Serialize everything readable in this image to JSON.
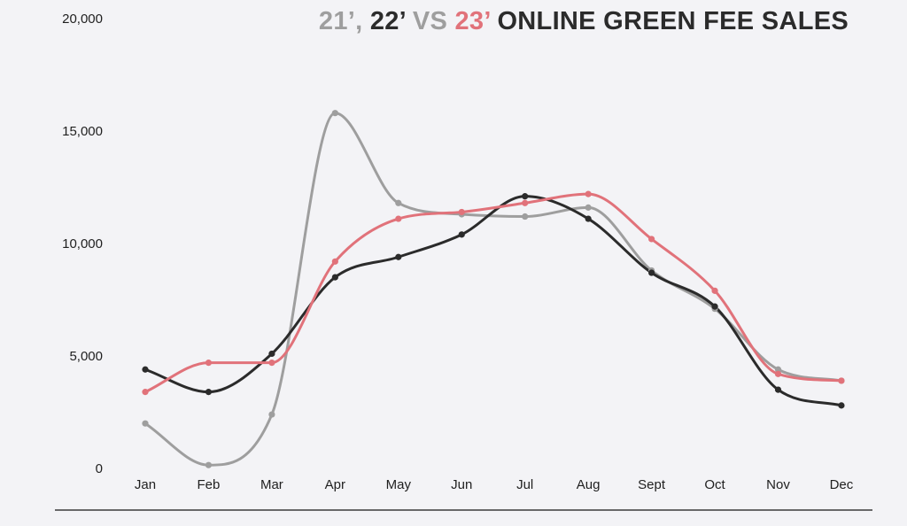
{
  "chart_data": {
    "type": "line",
    "title_parts": [
      {
        "text": "21’, ",
        "color": "#9e9e9e"
      },
      {
        "text": "22’ ",
        "color": "#2b2b2b"
      },
      {
        "text": "VS ",
        "color": "#9e9e9e"
      },
      {
        "text": "23’ ",
        "color": "#e1727a"
      },
      {
        "text": "ONLINE GREEN FEE SALES",
        "color": "#2b2b2b"
      }
    ],
    "categories": [
      "Jan",
      "Feb",
      "Mar",
      "Apr",
      "May",
      "Jun",
      "Jul",
      "Aug",
      "Sept",
      "Oct",
      "Nov",
      "Dec"
    ],
    "yticks": [
      "0",
      "5,000",
      "10,000",
      "15,000",
      "20,000"
    ],
    "ylim": [
      0,
      20000
    ],
    "series": [
      {
        "name": "21’",
        "color": "#9e9e9e",
        "values": [
          2000,
          150,
          2400,
          15800,
          11800,
          11300,
          11200,
          11600,
          8800,
          7100,
          4400,
          3900
        ]
      },
      {
        "name": "22’",
        "color": "#2b2b2b",
        "values": [
          4400,
          3400,
          5100,
          8500,
          9400,
          10400,
          12100,
          11100,
          8700,
          7200,
          3500,
          2800
        ]
      },
      {
        "name": "23’",
        "color": "#e1727a",
        "values": [
          3400,
          4700,
          4700,
          9200,
          11100,
          11400,
          11800,
          12200,
          10200,
          7900,
          4200,
          3900
        ]
      }
    ],
    "grid": false,
    "legend": "none"
  }
}
